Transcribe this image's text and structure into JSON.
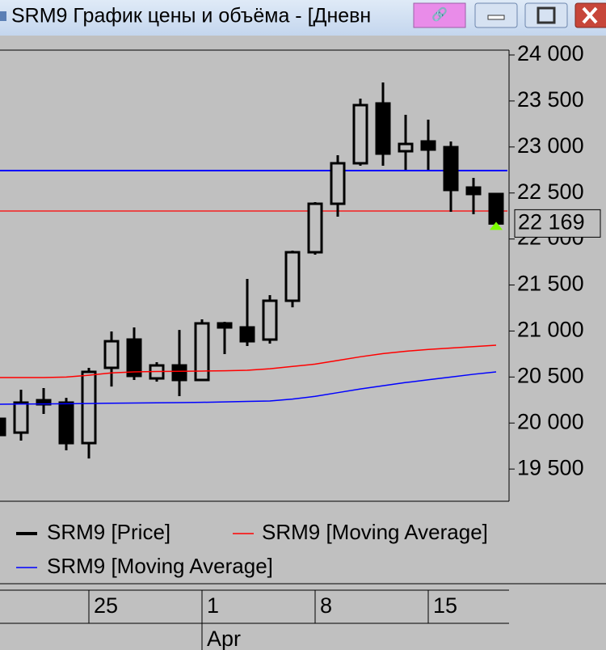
{
  "window_title": "SRM9 График цены и объёма - [Дневн",
  "chart_data": {
    "type": "candlestick",
    "categories": [
      null,
      null,
      null,
      null,
      "25",
      null,
      null,
      null,
      null,
      "1",
      null,
      null,
      null,
      null,
      "8",
      null,
      null,
      null,
      null,
      "15",
      null,
      null,
      null
    ],
    "month_labels": [
      {
        "index": 9,
        "label": "Apr"
      }
    ],
    "series": [
      {
        "name": "SRM9 [Price]",
        "color": "#000000",
        "open": [
          20046,
          19896,
          20248,
          20222,
          19782,
          20600,
          20907,
          20485,
          20626,
          20468,
          21083,
          21039,
          20907,
          21329,
          21856,
          22383,
          22823,
          23473,
          22954,
          23060,
          22998,
          22559,
          22489
        ],
        "high": [
          20116,
          20362,
          20380,
          20274,
          20600,
          20995,
          21039,
          20661,
          21012,
          21127,
          21100,
          21566,
          21390,
          21874,
          22401,
          22910,
          23525,
          23701,
          23350,
          23297,
          23060,
          22664,
          22489
        ],
        "low": [
          19809,
          19809,
          20099,
          19703,
          19615,
          20397,
          20468,
          20450,
          20292,
          20468,
          20749,
          20837,
          20863,
          21258,
          21830,
          22243,
          22796,
          22796,
          22752,
          22752,
          22295,
          22269,
          22137
        ],
        "close": [
          19870,
          20222,
          20204,
          19782,
          20556,
          20889,
          20512,
          20626,
          20468,
          21083,
          21039,
          20889,
          21329,
          21856,
          22383,
          22823,
          23455,
          22928,
          23033,
          22972,
          22533,
          22489,
          22169
        ]
      },
      {
        "name": "SRM9 [Moving Average]",
        "color": "#ff0000",
        "values": [
          20494,
          20494,
          20494,
          20500,
          20520,
          20545,
          20556,
          20560,
          20562,
          20565,
          20568,
          20573,
          20590,
          20615,
          20640,
          20680,
          20720,
          20755,
          20780,
          20800,
          20815,
          20830,
          20846
        ]
      },
      {
        "name": "SRM9 [Moving Average]",
        "color": "#0000ff",
        "values": [
          20204,
          20206,
          20208,
          20210,
          20212,
          20215,
          20218,
          20220,
          20222,
          20225,
          20230,
          20235,
          20240,
          20260,
          20290,
          20330,
          20370,
          20405,
          20440,
          20470,
          20500,
          20530,
          20556
        ]
      }
    ],
    "hlines": [
      {
        "value": 22743,
        "color": "#0000ff"
      },
      {
        "value": 22304,
        "color": "#ff0000"
      }
    ],
    "last_price": {
      "value": 22169,
      "label": "22 169"
    },
    "ylim": [
      19150,
      24050
    ],
    "yticks": [
      {
        "value": 19500,
        "label": "19 500"
      },
      {
        "value": 20000,
        "label": "20 000"
      },
      {
        "value": 20500,
        "label": "20 500"
      },
      {
        "value": 21000,
        "label": "21 000"
      },
      {
        "value": 21500,
        "label": "21 500"
      },
      {
        "value": 22000,
        "label": "22 000"
      },
      {
        "value": 22500,
        "label": "22 500"
      },
      {
        "value": 23000,
        "label": "23 000"
      },
      {
        "value": 23500,
        "label": "23 500"
      },
      {
        "value": 24000,
        "label": "24 000"
      }
    ]
  }
}
